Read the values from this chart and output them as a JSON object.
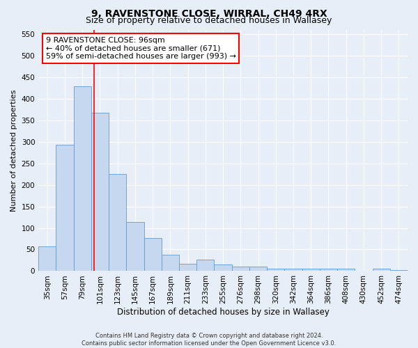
{
  "title": "9, RAVENSTONE CLOSE, WIRRAL, CH49 4RX",
  "subtitle": "Size of property relative to detached houses in Wallasey",
  "xlabel": "Distribution of detached houses by size in Wallasey",
  "ylabel": "Number of detached properties",
  "categories": [
    "35sqm",
    "57sqm",
    "79sqm",
    "101sqm",
    "123sqm",
    "145sqm",
    "167sqm",
    "189sqm",
    "211sqm",
    "233sqm",
    "255sqm",
    "276sqm",
    "298sqm",
    "320sqm",
    "342sqm",
    "364sqm",
    "386sqm",
    "408sqm",
    "430sqm",
    "452sqm",
    "474sqm"
  ],
  "values": [
    57,
    293,
    428,
    367,
    225,
    113,
    76,
    38,
    17,
    27,
    15,
    10,
    10,
    5,
    5,
    5,
    5,
    5,
    0,
    5,
    3
  ],
  "bar_color": "#c5d8f0",
  "bar_edge_color": "#6699cc",
  "vline_x": 2.68,
  "vline_color": "red",
  "annotation_text": "9 RAVENSTONE CLOSE: 96sqm\n← 40% of detached houses are smaller (671)\n59% of semi-detached houses are larger (993) →",
  "annotation_box_color": "white",
  "annotation_box_edge": "red",
  "ylim": [
    0,
    560
  ],
  "yticks": [
    0,
    50,
    100,
    150,
    200,
    250,
    300,
    350,
    400,
    450,
    500,
    550
  ],
  "footer": "Contains HM Land Registry data © Crown copyright and database right 2024.\nContains public sector information licensed under the Open Government Licence v3.0.",
  "bg_color": "#e8eef8",
  "grid_color": "#ffffff",
  "title_fontsize": 10,
  "subtitle_fontsize": 9,
  "tick_fontsize": 7.5,
  "ylabel_fontsize": 8,
  "xlabel_fontsize": 8.5,
  "annotation_fontsize": 8,
  "footer_fontsize": 6
}
